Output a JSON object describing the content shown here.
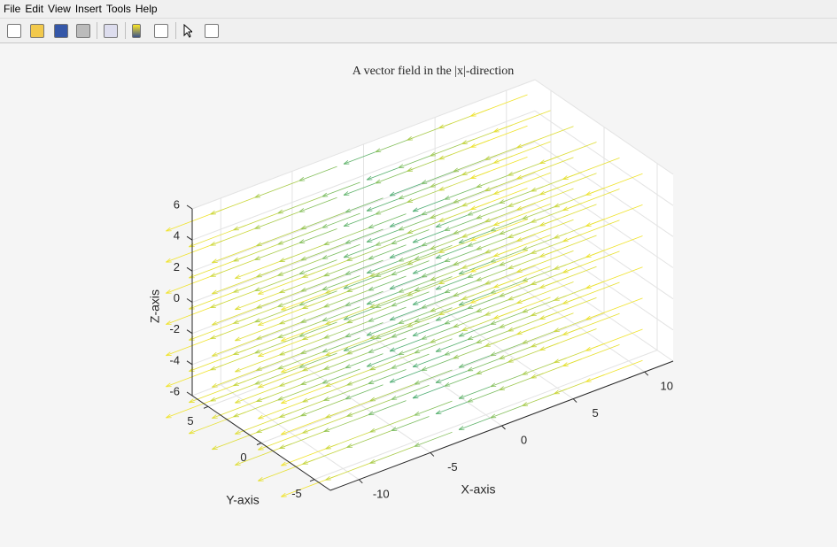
{
  "menu": [
    "File",
    "Edit",
    "View",
    "Insert",
    "Tools",
    "Help"
  ],
  "chart_data": {
    "type": "quiver3",
    "title": "A vector field in the |x|-direction",
    "xlabel": "X-axis",
    "ylabel": "Y-axis",
    "zlabel": "Z-axis",
    "xlim": [
      -12,
      12
    ],
    "ylim": [
      -6.5,
      6.5
    ],
    "zlim": [
      -6,
      6
    ],
    "xticks": [
      -10,
      -5,
      0,
      5,
      10
    ],
    "yticks": [
      -5,
      0,
      5
    ],
    "zticks": [
      -6,
      -4,
      -2,
      0,
      2,
      4,
      6
    ],
    "grid": true
  }
}
